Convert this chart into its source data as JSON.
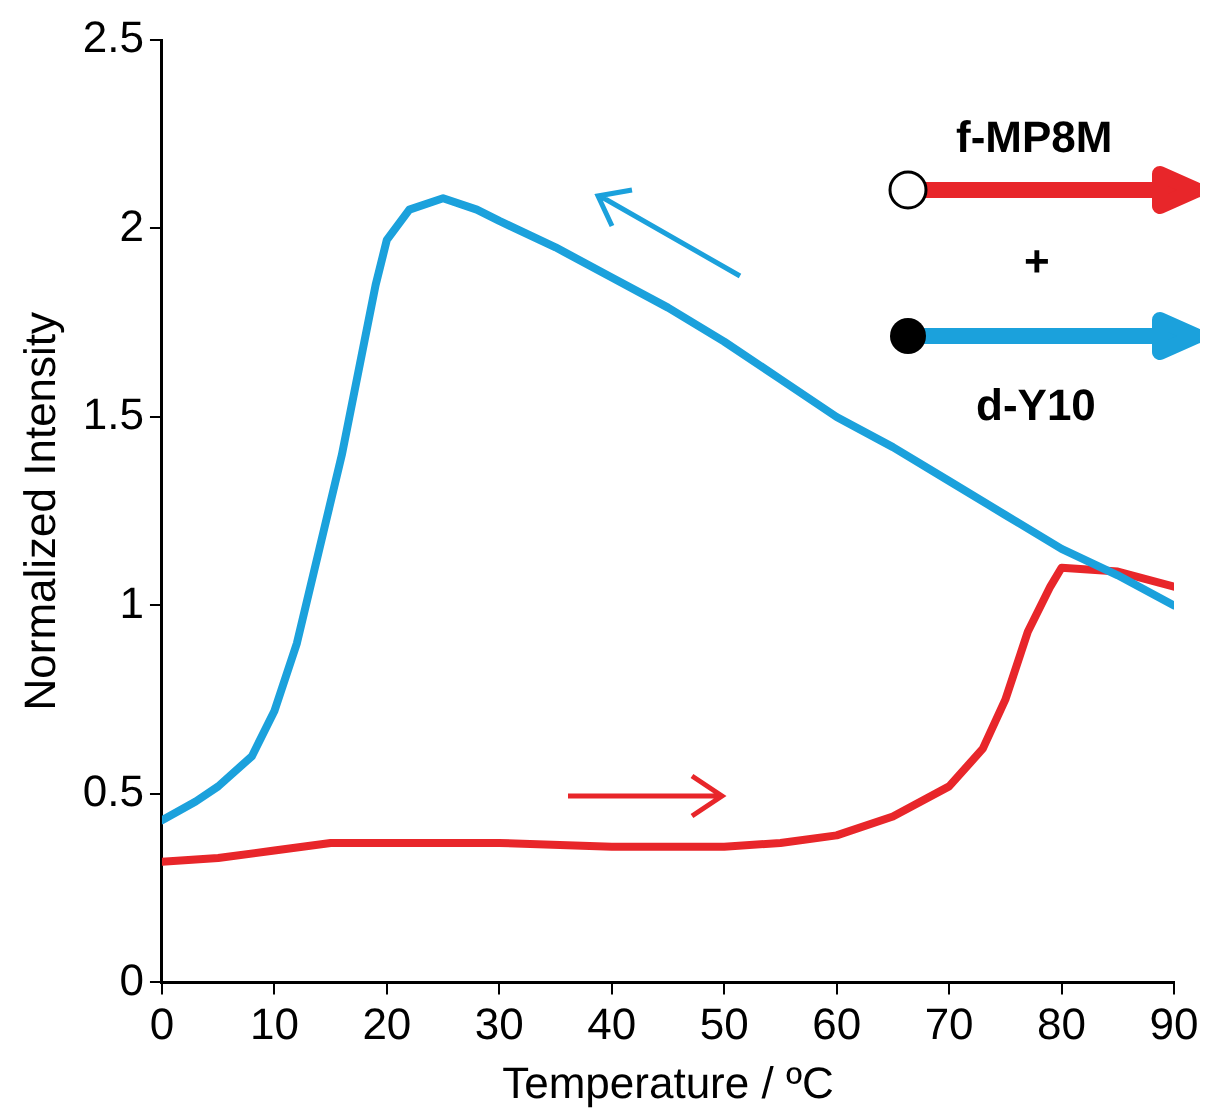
{
  "chart_data": {
    "type": "line",
    "xlabel": "Temperature / ºC",
    "ylabel": "Normalized Intensity",
    "xlim": [
      0,
      90
    ],
    "xticks": [
      0,
      10,
      20,
      30,
      40,
      50,
      60,
      70,
      80,
      90
    ],
    "ylim": [
      0,
      2.5
    ],
    "yticks": [
      0,
      0.5,
      1,
      1.5,
      2,
      2.5
    ],
    "grid": false,
    "legend": false,
    "marker": "none",
    "line_style": "solid",
    "annotations": [
      "f-MP8M",
      "+",
      "d-Y10"
    ],
    "series": [
      {
        "color": "#1ba1dc",
        "x": [
          0,
          3,
          5,
          8,
          10,
          12,
          14,
          16,
          18,
          19,
          20,
          22,
          25,
          28,
          30,
          35,
          40,
          45,
          50,
          55,
          60,
          65,
          70,
          75,
          80,
          85,
          90
        ],
        "values": [
          0.43,
          0.48,
          0.52,
          0.6,
          0.72,
          0.9,
          1.15,
          1.4,
          1.7,
          1.85,
          1.97,
          2.05,
          2.08,
          2.05,
          2.02,
          1.95,
          1.87,
          1.79,
          1.7,
          1.6,
          1.5,
          1.42,
          1.33,
          1.24,
          1.15,
          1.08,
          1.0
        ]
      },
      {
        "color": "#e8262a",
        "x": [
          0,
          5,
          10,
          15,
          20,
          30,
          40,
          50,
          55,
          60,
          65,
          70,
          73,
          75,
          77,
          79,
          80,
          85,
          90
        ],
        "values": [
          0.32,
          0.33,
          0.35,
          0.37,
          0.37,
          0.37,
          0.36,
          0.36,
          0.37,
          0.39,
          0.44,
          0.52,
          0.62,
          0.75,
          0.93,
          1.05,
          1.1,
          1.09,
          1.05
        ]
      }
    ]
  }
}
